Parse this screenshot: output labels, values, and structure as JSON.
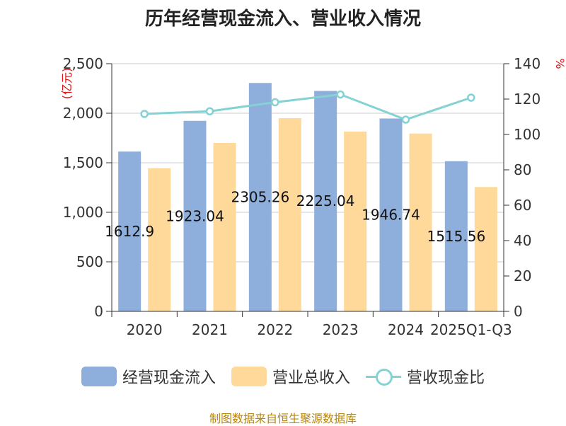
{
  "page": {
    "title": "历年经营现金流入、营业收入情况",
    "source": "制图数据来自恒生聚源数据库"
  },
  "chart_data": {
    "type": "bar",
    "title": "历年经营现金流入、营业收入情况",
    "categories": [
      "2020",
      "2021",
      "2022",
      "2023",
      "2024",
      "2025Q1-Q3"
    ],
    "y_left": {
      "label": "亿元",
      "ticks": [
        "0",
        "500",
        "1,000",
        "1,500",
        "2,000",
        "2,500"
      ],
      "ylim": [
        0,
        2500
      ]
    },
    "y_right": {
      "label": "%",
      "ticks": [
        "0",
        "20",
        "40",
        "60",
        "80",
        "100",
        "120",
        "140"
      ],
      "ylim": [
        0,
        140
      ]
    },
    "grid": true,
    "legend_position": "bottom",
    "series": [
      {
        "name": "经营现金流入",
        "kind": "bar",
        "axis": "left",
        "color": "#8eaedb",
        "values": [
          1612.9,
          1923.04,
          2305.26,
          2225.04,
          1946.74,
          1515.56
        ],
        "labels": [
          "1612.9",
          "1923.04",
          "2305.26",
          "2225.04",
          "1946.74",
          "1515.56"
        ]
      },
      {
        "name": "营业总收入",
        "kind": "bar",
        "axis": "left",
        "color": "#ffd99a",
        "values": [
          1445,
          1700,
          1950,
          1815,
          1795,
          1255
        ]
      },
      {
        "name": "营收现金比",
        "kind": "line",
        "axis": "right",
        "color": "#84d2d4",
        "values": [
          111.6,
          113.1,
          118.2,
          122.6,
          108.4,
          120.8
        ]
      }
    ]
  }
}
